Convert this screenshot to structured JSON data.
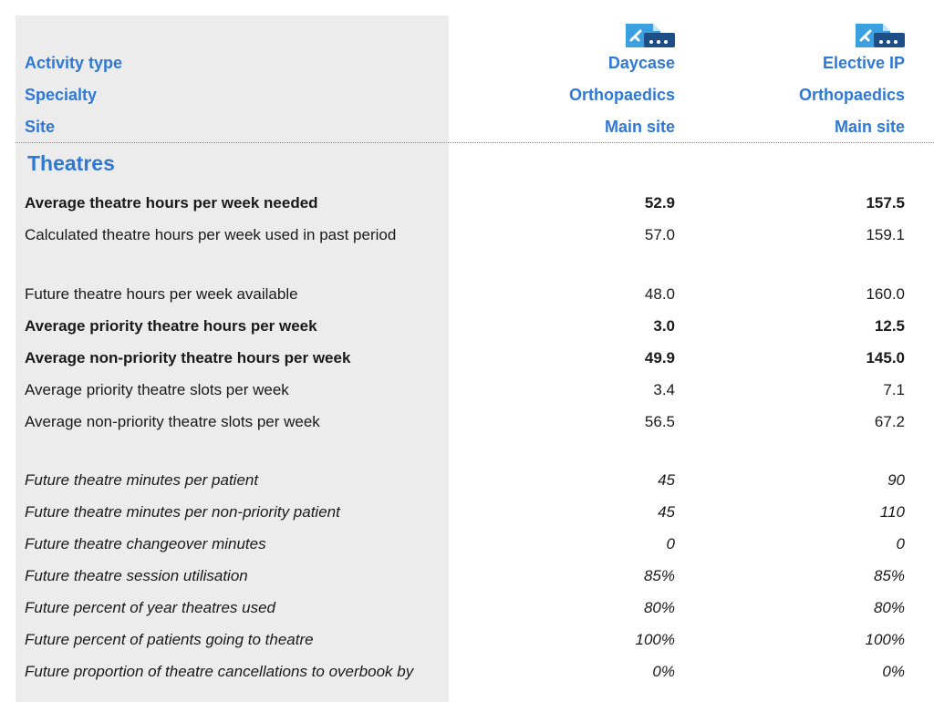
{
  "header": {
    "rows": [
      {
        "label": "Activity type",
        "values": [
          "Daycase",
          "Elective IP"
        ]
      },
      {
        "label": "Specialty",
        "values": [
          "Orthopaedics",
          "Orthopaedics"
        ]
      },
      {
        "label": "Site",
        "values": [
          "Main site",
          "Main site"
        ]
      }
    ],
    "icon_names": [
      "theatre-activity-icon",
      "theatre-activity-icon"
    ],
    "accent_color": "#2f78d6"
  },
  "section": {
    "title": "Theatres"
  },
  "rows": [
    {
      "label": "Average theatre hours per week needed",
      "values": [
        "52.9",
        "157.5"
      ],
      "style": "bold"
    },
    {
      "label": "Calculated theatre hours per week used in past period",
      "values": [
        "57.0",
        "159.1"
      ],
      "style": "normal"
    },
    {
      "label": "Future theatre hours per week available",
      "values": [
        "48.0",
        "160.0"
      ],
      "style": "normal"
    },
    {
      "label": "Average priority theatre hours per week",
      "values": [
        "3.0",
        "12.5"
      ],
      "style": "bold"
    },
    {
      "label": "Average non-priority theatre hours per week",
      "values": [
        "49.9",
        "145.0"
      ],
      "style": "bold"
    },
    {
      "label": "Average priority theatre slots per week",
      "values": [
        "3.4",
        "7.1"
      ],
      "style": "normal"
    },
    {
      "label": "Average non-priority theatre slots per week",
      "values": [
        "56.5",
        "67.2"
      ],
      "style": "normal"
    },
    {
      "label": "Future theatre minutes per patient",
      "values": [
        "45",
        "90"
      ],
      "style": "italic"
    },
    {
      "label": "Future theatre minutes per non-priority patient",
      "values": [
        "45",
        "110"
      ],
      "style": "italic"
    },
    {
      "label": "Future theatre changeover minutes",
      "values": [
        "0",
        "0"
      ],
      "style": "italic"
    },
    {
      "label": "Future theatre session utilisation",
      "values": [
        "85%",
        "85%"
      ],
      "style": "italic"
    },
    {
      "label": "Future percent of year theatres used",
      "values": [
        "80%",
        "80%"
      ],
      "style": "italic"
    },
    {
      "label": "Future percent of patients going to theatre",
      "values": [
        "100%",
        "100%"
      ],
      "style": "italic"
    },
    {
      "label": "Future proportion of theatre cancellations to overbook by",
      "values": [
        "0%",
        "0%"
      ],
      "style": "italic"
    }
  ]
}
